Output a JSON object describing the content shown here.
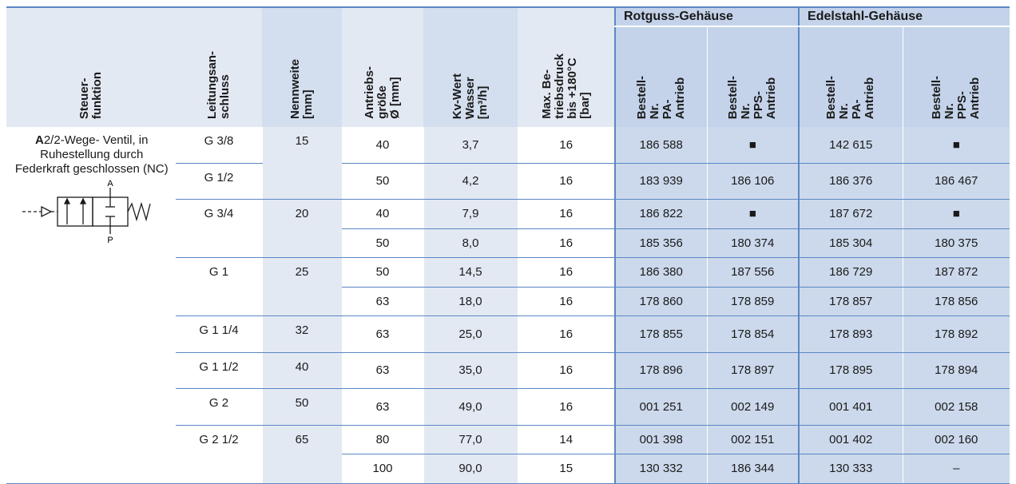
{
  "table": {
    "headers": [
      "Steuer-\nfunktion",
      "Leitungsan-\nschluss",
      "Nennweite\n[mm]",
      "Antriebs-\ngröße\nØ [mm]",
      "Kv-Wert\nWasser\n[m³/h]",
      "Max. Be-\ntriebsdruck\nbis +180°C\n[bar]"
    ],
    "groups": [
      {
        "title": "Rotguss-Gehäuse",
        "sub": [
          "Bestell-\nNr.\nPA-\nAntrieb",
          "Bestell-\nNr.\nPPS-\nAntrieb"
        ]
      },
      {
        "title": "Edelstahl-Gehäuse",
        "sub": [
          "Bestell-\nNr.\nPA-\nAntrieb",
          "Bestell-\nNr.\nPPS-\nAntrieb"
        ]
      }
    ],
    "function": {
      "letter": "A",
      "text": "2/2-Wege- Ventil, in Ruhestellung durch Federkraft geschlossen (NC)",
      "symbol_labels": [
        "A",
        "P"
      ]
    },
    "rows": [
      {
        "anschluss": "G 3/8",
        "nennweite": "15",
        "values": [
          "40",
          "3,7",
          "16",
          "186 588",
          "■",
          "142 615",
          "■"
        ]
      },
      {
        "anschluss": "G 1/2",
        "values": [
          "50",
          "4,2",
          "16",
          "183 939",
          "186 106",
          "186 376",
          "186 467"
        ]
      },
      {
        "anschluss": "G 3/4",
        "nennweite": "20",
        "values": [
          "40",
          "7,9",
          "16",
          "186 822",
          "■",
          "187 672",
          "■"
        ]
      },
      {
        "values": [
          "50",
          "8,0",
          "16",
          "185 356",
          "180 374",
          "185 304",
          "180 375"
        ]
      },
      {
        "anschluss": "G 1",
        "nennweite": "25",
        "values": [
          "50",
          "14,5",
          "16",
          "186 380",
          "187 556",
          "186 729",
          "187 872"
        ]
      },
      {
        "values": [
          "63",
          "18,0",
          "16",
          "178 860",
          "178 859",
          "178 857",
          "178 856"
        ]
      },
      {
        "anschluss": "G 1 1/4",
        "nennweite": "32",
        "values": [
          "63",
          "25,0",
          "16",
          "178 855",
          "178 854",
          "178 893",
          "178 892"
        ]
      },
      {
        "anschluss": "G 1 1/2",
        "nennweite": "40",
        "values": [
          "63",
          "35,0",
          "16",
          "178 896",
          "178 897",
          "178 895",
          "178 894"
        ]
      },
      {
        "anschluss": "G 2",
        "nennweite": "50",
        "values": [
          "63",
          "49,0",
          "16",
          "001 251",
          "002 149",
          "001 401",
          "002 158"
        ]
      },
      {
        "anschluss": "G 2 1/2",
        "nennweite": "65",
        "values": [
          "80",
          "77,0",
          "14",
          "001 398",
          "002 151",
          "001 402",
          "002 160"
        ]
      },
      {
        "values": [
          "100",
          "90,0",
          "15",
          "130 332",
          "186 344",
          "130 333",
          "–"
        ]
      }
    ]
  }
}
